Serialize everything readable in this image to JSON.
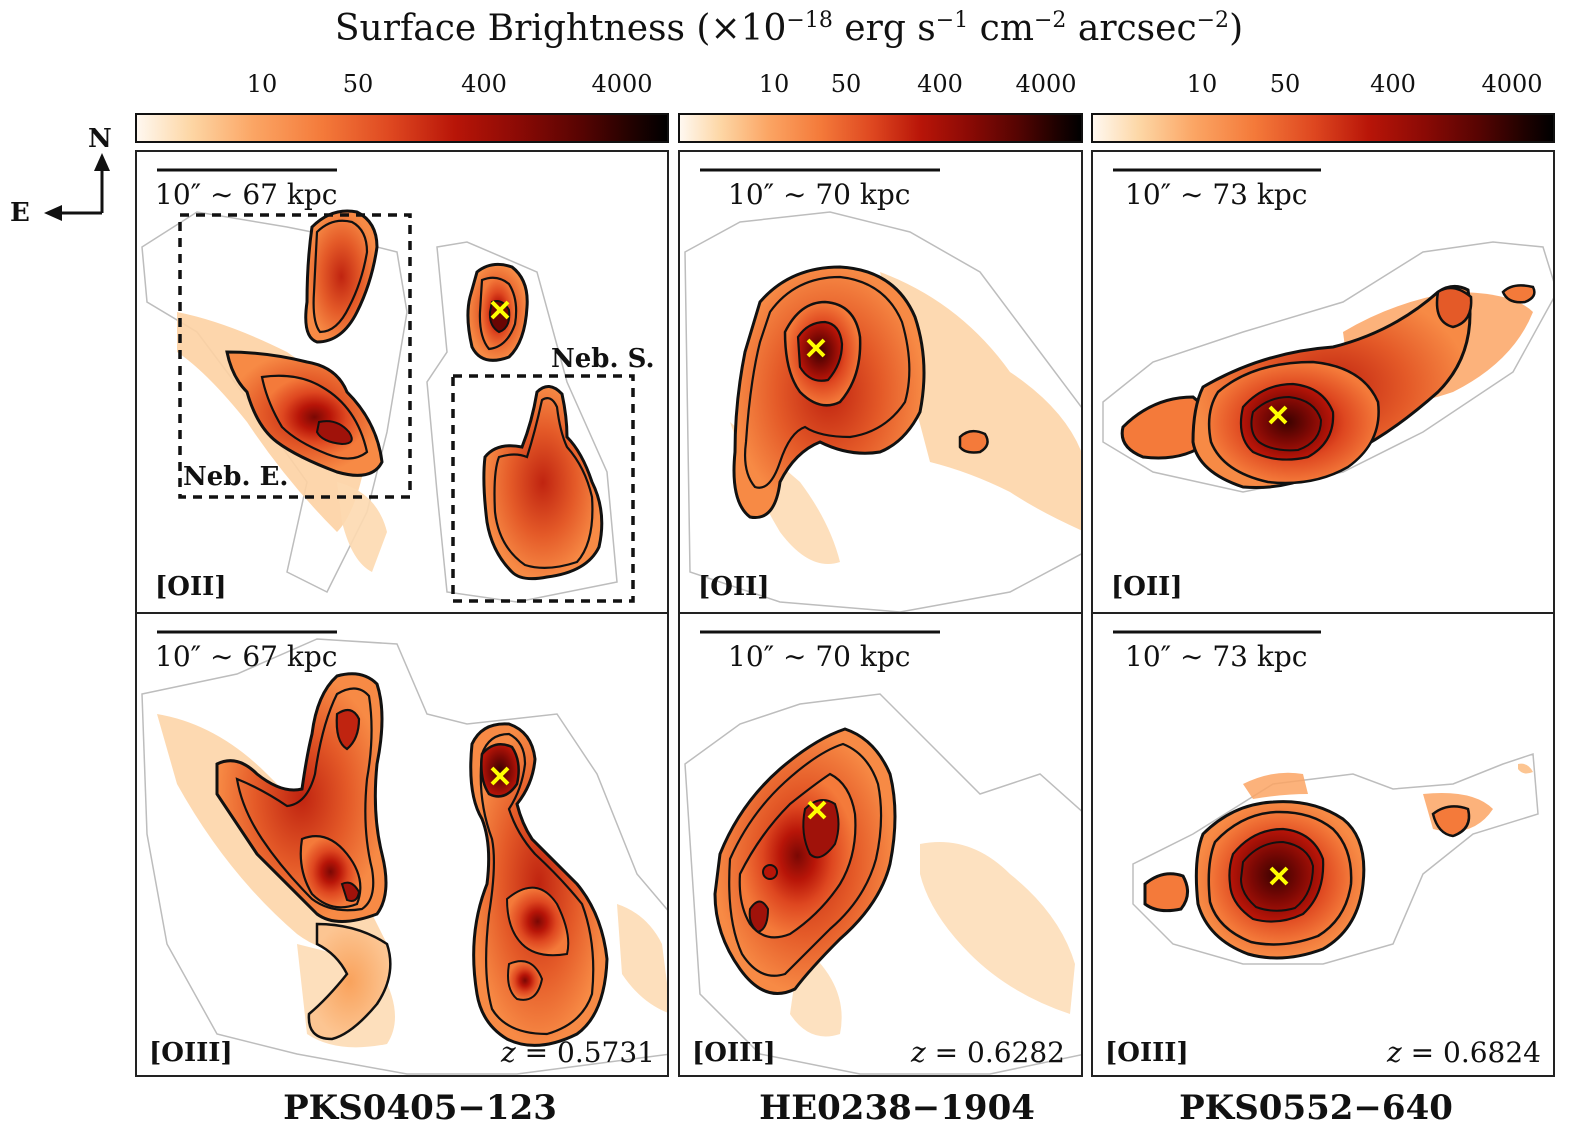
{
  "figure": {
    "colorbar_title_main": "Surface Brightness (×10",
    "colorbar_title_exp1": "−18",
    "colorbar_title_unit1": " erg s",
    "colorbar_title_exp2": "−1",
    "colorbar_title_unit2": " cm",
    "colorbar_title_exp3": "−2",
    "colorbar_title_unit3": " arcsec",
    "colorbar_title_exp4": "−2",
    "colorbar_title_end": ")",
    "colorbar_ticks": [
      "10",
      "50",
      "400",
      "4000"
    ],
    "colormap_colors": [
      "#fff8f0",
      "#fdd7a6",
      "#fba564",
      "#f47a3a",
      "#de4720",
      "#b81508",
      "#8b0a05",
      "#560402",
      "#1e0100",
      "#000000"
    ],
    "compass": {
      "north": "N",
      "east": "E"
    },
    "marker_color": "#ffff00"
  },
  "columns": [
    {
      "qso_name": "PKS0405−123",
      "redshift": "= 0.5731",
      "scale_label": "10″ ∼ 67 kpc",
      "oii_label": "[OII]",
      "oiii_label": "[OIII]",
      "nebula_labels": [
        "Neb. E.",
        "Neb. S."
      ]
    },
    {
      "qso_name": "HE0238−1904",
      "redshift": "= 0.6282",
      "scale_label": "10″ ∼ 70 kpc",
      "oii_label": "[OII]",
      "oiii_label": "[OIII]"
    },
    {
      "qso_name": "PKS0552−640",
      "redshift": "= 0.6824",
      "scale_label": "10″ ∼ 73 kpc",
      "oii_label": "[OII]",
      "oiii_label": "[OIII]"
    }
  ],
  "z_symbol": "z"
}
